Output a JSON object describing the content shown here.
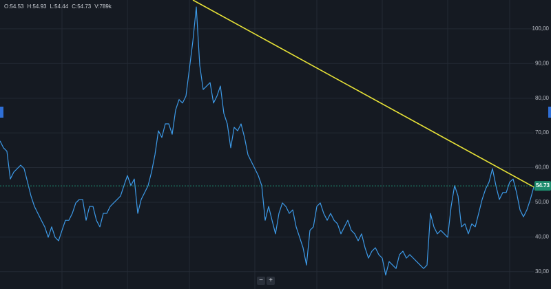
{
  "chart_data": {
    "type": "line",
    "header": [
      "O:54.53",
      "H:54.93",
      "L:54.44",
      "C:54.73",
      "V:789k"
    ],
    "series": [
      {
        "color": "#3d9be9",
        "values": [
          67.7,
          65.7,
          64.7,
          56.7,
          58.7,
          59.7,
          60.7,
          59.7,
          55.8,
          51.8,
          48.8,
          46.8,
          44.8,
          42.9,
          39.9,
          42.9,
          39.9,
          38.9,
          41.9,
          44.8,
          44.8,
          46.8,
          49.8,
          50.8,
          50.8,
          44.8,
          48.8,
          48.8,
          44.8,
          42.9,
          46.8,
          46.8,
          48.8,
          49.8,
          50.8,
          51.8,
          54.8,
          57.7,
          54.8,
          56.7,
          46.8,
          50.8,
          52.8,
          54.8,
          58.7,
          63.7,
          70.6,
          68.7,
          72.6,
          72.6,
          69.6,
          76.6,
          79.6,
          78.6,
          80.6,
          88.5,
          96.4,
          106.3,
          89.5,
          82.5,
          83.5,
          84.5,
          78.6,
          80.6,
          83.5,
          75.6,
          72.6,
          65.7,
          71.6,
          70.6,
          72.6,
          68.7,
          63.7,
          61.7,
          59.7,
          57.7,
          54.8,
          44.8,
          48.8,
          44.8,
          40.9,
          46.8,
          49.8,
          48.8,
          46.8,
          47.8,
          42.9,
          39.9,
          36.9,
          31.9,
          41.9,
          42.9,
          48.8,
          49.8,
          46.8,
          44.8,
          46.8,
          44.8,
          43.8,
          40.9,
          42.9,
          44.8,
          41.9,
          40.9,
          38.9,
          40.9,
          36.9,
          33.9,
          35.9,
          36.9,
          34.9,
          33.9,
          29.0,
          32.9,
          31.9,
          30.9,
          34.9,
          35.9,
          33.9,
          34.9,
          33.9,
          32.9,
          31.9,
          30.9,
          31.9,
          46.8,
          42.9,
          40.9,
          41.9,
          40.9,
          39.9,
          48.8,
          54.8,
          51.8,
          42.9,
          43.8,
          40.9,
          43.8,
          42.9,
          46.8,
          50.8,
          53.8,
          55.8,
          59.7,
          54.8,
          50.8,
          52.8,
          52.8,
          55.8,
          56.7,
          52.8,
          47.8,
          45.8,
          47.8,
          50.8,
          54.4
        ]
      }
    ],
    "trendline": {
      "color": "#e8e337",
      "x": [
        56,
        155
      ],
      "values": [
        108.3,
        54.4
      ]
    },
    "last_price": 54.73,
    "last_price_color": "#1e8c6e",
    "ylim": [
      25,
      108.3
    ],
    "yticks": [
      {
        "value": 30,
        "label": "30,00"
      },
      {
        "value": 40,
        "label": "40,00"
      },
      {
        "value": 50,
        "label": "50,00"
      },
      {
        "value": 60,
        "label": "60,00"
      },
      {
        "value": 70,
        "label": "70,00"
      },
      {
        "value": 80,
        "label": "80,00"
      },
      {
        "value": 90,
        "label": "90,00"
      },
      {
        "value": 100,
        "label": "100,00"
      }
    ],
    "grid": true,
    "zoom_controls": [
      "−",
      "+"
    ]
  }
}
